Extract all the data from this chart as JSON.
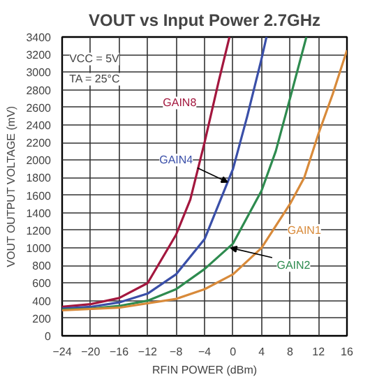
{
  "chart_data": {
    "type": "line",
    "title": "VOUT vs Input Power 2.7GHz",
    "xlabel": "RFIN POWER (dBm)",
    "ylabel": "VOUT OUTPUT VOLTAGE (mV)",
    "annotations": [
      "VCC = 5V",
      "TA = 25°C"
    ],
    "xlim": [
      -24,
      16
    ],
    "xticks": [
      -24,
      -20,
      -16,
      -12,
      -8,
      -4,
      0,
      4,
      8,
      12,
      16
    ],
    "ylim": [
      0,
      3400
    ],
    "yticks": [
      0,
      200,
      400,
      600,
      800,
      1000,
      1200,
      1400,
      1600,
      1800,
      2000,
      2200,
      2400,
      2600,
      2800,
      3000,
      3200,
      3400
    ],
    "grid": true,
    "line_style": "solid",
    "series": [
      {
        "name": "GAIN8",
        "color": "#a3173e",
        "x": [
          -24,
          -20,
          -16,
          -12,
          -8,
          -6,
          -4,
          -2,
          -0.5
        ],
        "values": [
          330,
          360,
          430,
          600,
          1150,
          1550,
          2200,
          2900,
          3400
        ]
      },
      {
        "name": "GAIN4",
        "color": "#3a4fa8",
        "x": [
          -24,
          -20,
          -16,
          -12,
          -8,
          -4,
          0,
          2,
          4,
          4.7
        ],
        "values": [
          310,
          330,
          380,
          480,
          700,
          1100,
          1900,
          2500,
          3150,
          3400
        ]
      },
      {
        "name": "GAIN2",
        "color": "#2e8b4f",
        "x": [
          -24,
          -20,
          -16,
          -12,
          -8,
          -4,
          0,
          4,
          6,
          8,
          10.3
        ],
        "values": [
          300,
          310,
          340,
          400,
          530,
          760,
          1050,
          1650,
          2100,
          2700,
          3400
        ]
      },
      {
        "name": "GAIN1",
        "color": "#d88a3a",
        "x": [
          -24,
          -16,
          -8,
          -4,
          0,
          4,
          8,
          10,
          12,
          14,
          16
        ],
        "values": [
          290,
          320,
          420,
          530,
          700,
          1000,
          1500,
          1800,
          2300,
          2750,
          3250
        ]
      }
    ]
  }
}
